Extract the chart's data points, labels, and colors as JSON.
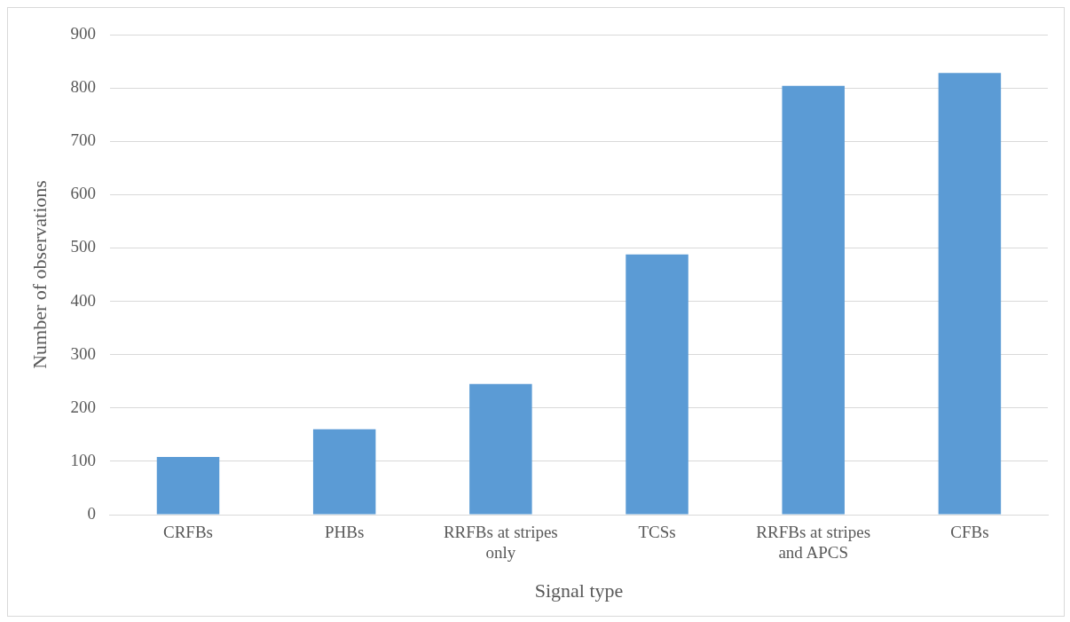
{
  "chart_data": {
    "type": "bar",
    "xlabel": "Signal type",
    "ylabel": "Number of observations",
    "categories": [
      "CRFBs",
      "PHBs",
      "RRFBs at stripes only",
      "TCSs",
      "RRFBs at stripes and APCS",
      "CFBs"
    ],
    "values": [
      108,
      160,
      245,
      488,
      804,
      828
    ],
    "color": "#5b9bd5",
    "ylim": [
      0,
      900
    ],
    "yticks": [
      0,
      100,
      200,
      300,
      400,
      500,
      600,
      700,
      800,
      900
    ],
    "grid": "y",
    "legend": false
  }
}
